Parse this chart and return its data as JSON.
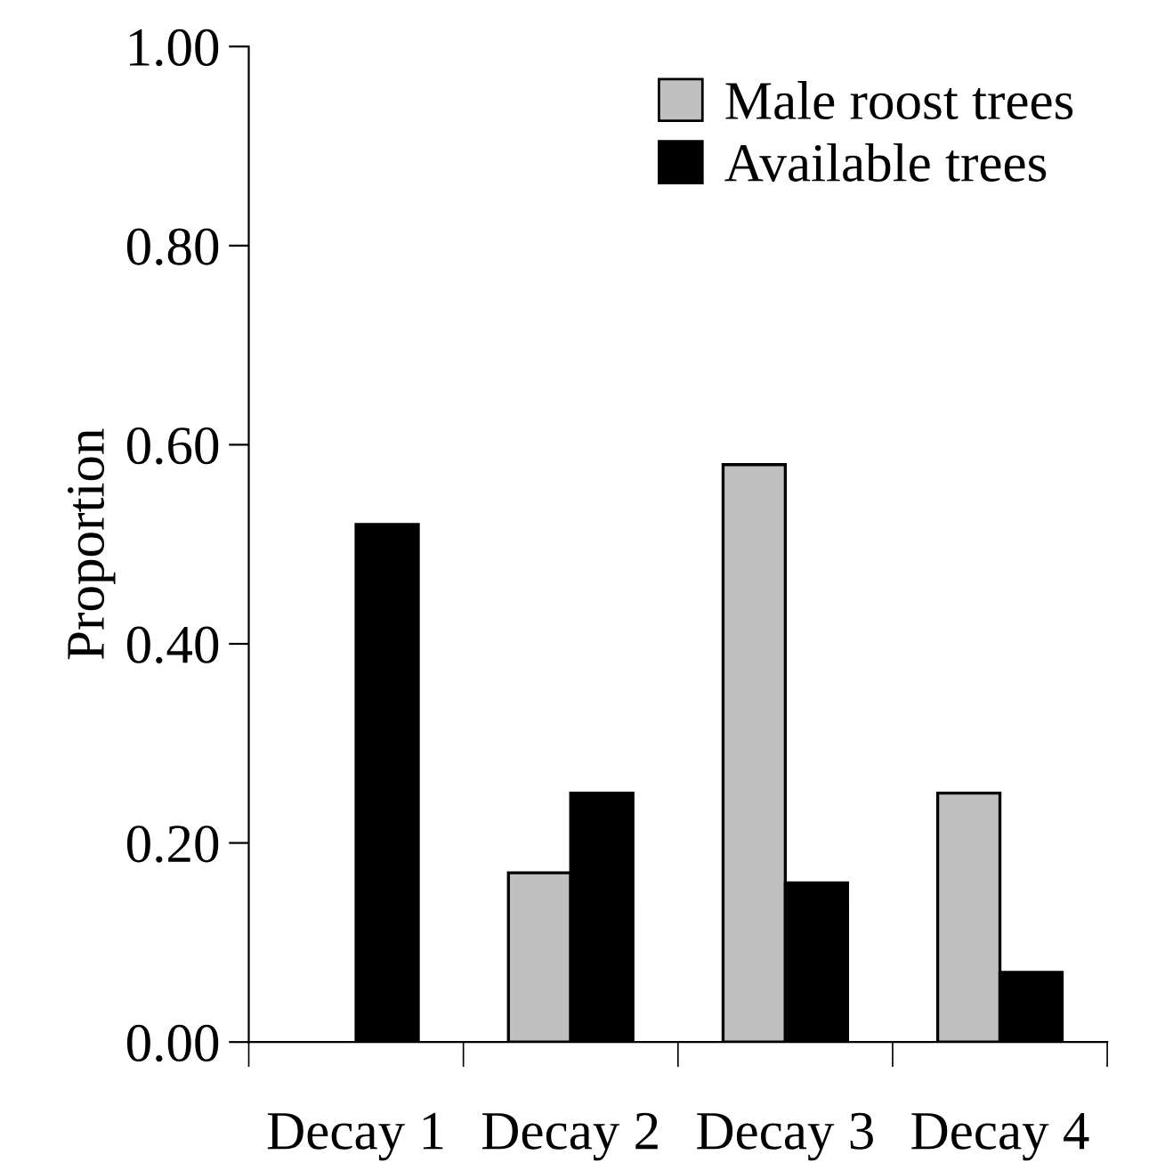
{
  "chart_data": {
    "type": "bar",
    "ylabel": "Proportion",
    "categories": [
      "Decay 1",
      "Decay 2",
      "Decay 3",
      "Decay 4"
    ],
    "series": [
      {
        "name": "Male roost trees",
        "color": "#c0c0c0",
        "values": [
          0,
          0.17,
          0.58,
          0.25
        ]
      },
      {
        "name": "Available trees",
        "color": "#000000",
        "values": [
          0.52,
          0.25,
          0.16,
          0.07
        ]
      }
    ],
    "ylim": [
      0,
      1.0
    ],
    "yticks": [
      {
        "value": 0,
        "label": "0.00"
      },
      {
        "value": 0.2,
        "label": "0.20"
      },
      {
        "value": 0.4,
        "label": "0.40"
      },
      {
        "value": 0.6,
        "label": "0.60"
      },
      {
        "value": 0.8,
        "label": "0.80"
      },
      {
        "value": 1.0,
        "label": "1.00"
      }
    ],
    "grid": false,
    "legend": "top right"
  }
}
